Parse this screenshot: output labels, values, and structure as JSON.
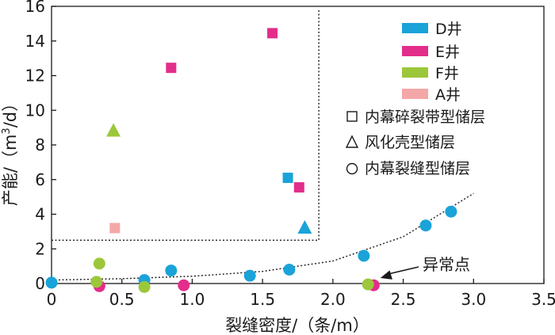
{
  "chart_data": {
    "type": "scatter",
    "xlabel": "裂缝密度/（条/m）",
    "ylabel_main": "产能/（m",
    "ylabel_sup": "3",
    "ylabel_end": "/d）",
    "xlim": [
      0,
      3.5
    ],
    "ylim": [
      0,
      16
    ],
    "x_ticks": [
      0,
      0.5,
      1.0,
      1.5,
      2.0,
      2.5,
      3.0,
      3.5
    ],
    "x_tick_labels": [
      "0",
      "0.5",
      "1.0",
      "1.5",
      "2.0",
      "2.5",
      "3.0",
      "3.5"
    ],
    "y_ticks": [
      0,
      2,
      4,
      6,
      8,
      10,
      12,
      14,
      16
    ],
    "y_tick_labels": [
      "0",
      "2",
      "4",
      "6",
      "8",
      "10",
      "12",
      "14",
      "16"
    ],
    "series": [
      {
        "name": "D井",
        "color": "#1aa3d9",
        "points": [
          {
            "x": 0.0,
            "y": 0.05,
            "shape": "circle"
          },
          {
            "x": 0.66,
            "y": 0.2,
            "shape": "circle"
          },
          {
            "x": 0.85,
            "y": 0.75,
            "shape": "circle"
          },
          {
            "x": 1.41,
            "y": 0.45,
            "shape": "circle"
          },
          {
            "x": 1.69,
            "y": 0.8,
            "shape": "circle"
          },
          {
            "x": 2.22,
            "y": 1.6,
            "shape": "circle"
          },
          {
            "x": 2.66,
            "y": 3.35,
            "shape": "circle"
          },
          {
            "x": 2.84,
            "y": 4.15,
            "shape": "circle"
          },
          {
            "x": 1.68,
            "y": 6.1,
            "shape": "square"
          },
          {
            "x": 1.8,
            "y": 3.2,
            "shape": "triangle"
          }
        ]
      },
      {
        "name": "E井",
        "color": "#e32d8b",
        "points": [
          {
            "x": 0.34,
            "y": -0.15,
            "shape": "circle"
          },
          {
            "x": 0.94,
            "y": -0.1,
            "shape": "circle"
          },
          {
            "x": 2.29,
            "y": -0.1,
            "shape": "circle"
          },
          {
            "x": 0.85,
            "y": 12.45,
            "shape": "square"
          },
          {
            "x": 1.57,
            "y": 14.45,
            "shape": "square"
          },
          {
            "x": 1.76,
            "y": 5.55,
            "shape": "square"
          }
        ]
      },
      {
        "name": "F井",
        "color": "#9cc73b",
        "points": [
          {
            "x": 0.32,
            "y": 0.1,
            "shape": "circle"
          },
          {
            "x": 0.34,
            "y": 1.15,
            "shape": "circle"
          },
          {
            "x": 0.66,
            "y": -0.2,
            "shape": "circle"
          },
          {
            "x": 2.25,
            "y": -0.05,
            "shape": "circle"
          },
          {
            "x": 0.44,
            "y": 8.8,
            "shape": "triangle"
          }
        ]
      },
      {
        "name": "A井",
        "color": "#f4a7a7",
        "points": [
          {
            "x": 0.45,
            "y": 3.2,
            "shape": "square"
          }
        ]
      }
    ],
    "legend": {
      "position": "top-right",
      "well_entries": [
        "D井",
        "E井",
        "F井",
        "A井"
      ],
      "shape_entries": [
        {
          "shape": "square",
          "label": "内幕碎裂带型储层"
        },
        {
          "shape": "triangle",
          "label": "风化壳型储层"
        },
        {
          "shape": "circle",
          "label": "内幕裂缝型储层"
        }
      ]
    },
    "region_box": {
      "x_max": 1.9,
      "y_min": 2.5,
      "y_max": 15.8
    },
    "trend_curve": {
      "x": [
        0,
        0.5,
        1.0,
        1.5,
        2.0,
        2.5,
        3.0
      ],
      "y": [
        0.2,
        0.28,
        0.42,
        0.7,
        1.3,
        2.7,
        5.2
      ]
    },
    "annotation": {
      "text": "异常点",
      "x": 2.27,
      "y": 0.0
    }
  }
}
